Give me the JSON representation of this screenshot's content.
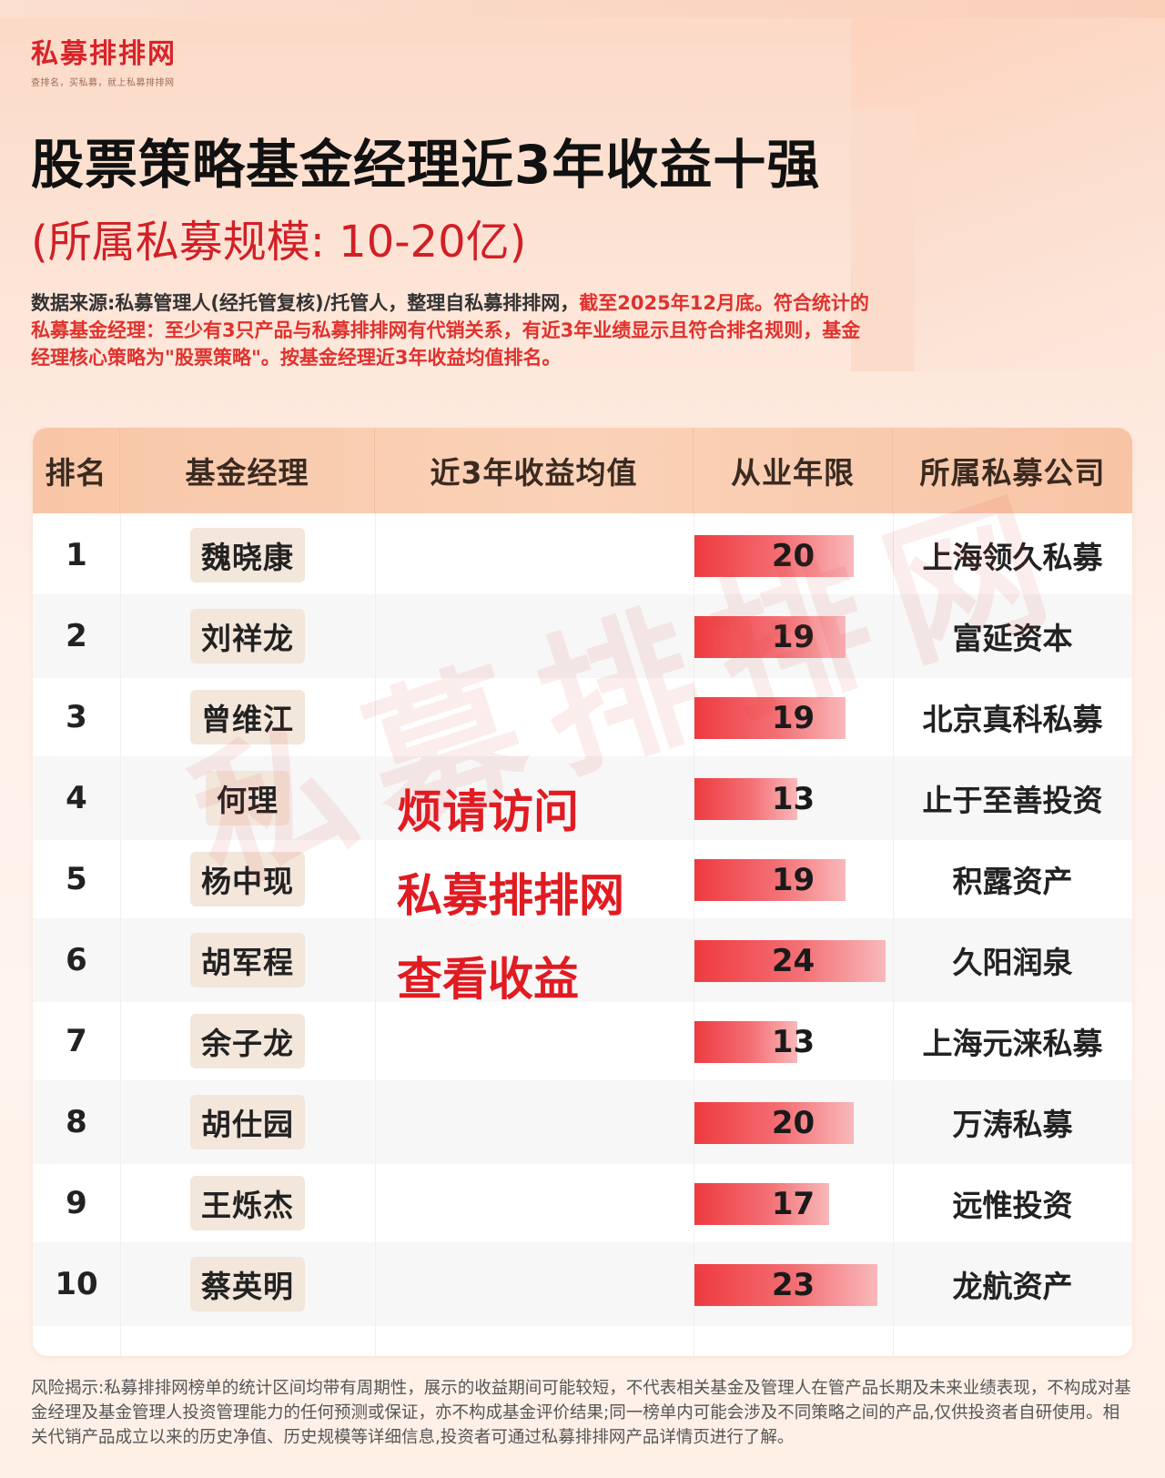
{
  "brand": {
    "name": "私募排排网",
    "tagline": "查排名，买私募，就上私募排排网"
  },
  "title": "股票策略基金经理近3年收益十强",
  "subtitle": "(所属私募规模: 10-20亿)",
  "description": {
    "part1": "数据来源:私募管理人(经托管复核)/托管人，整理自私募排排网，",
    "part2": "截至2025年12月底。符合统计的私募基金经理：至少有3只产品与私募排排网有代销关系，有近3年业绩显示且符合排名规则，基金经理核心策略为\"股票策略\"。按基金经理近3年收益均值排名。"
  },
  "table": {
    "headers": [
      "排名",
      "基金经理",
      "近3年收益均值",
      "从业年限",
      "所属私募公司"
    ],
    "rows": [
      {
        "rank": "1",
        "manager": "魏晓康",
        "years": 20,
        "company": "上海领久私募"
      },
      {
        "rank": "2",
        "manager": "刘祥龙",
        "years": 19,
        "company": "富延资本"
      },
      {
        "rank": "3",
        "manager": "曾维江",
        "years": 19,
        "company": "北京真科私募"
      },
      {
        "rank": "4",
        "manager": "何理",
        "years": 13,
        "company": "止于至善投资"
      },
      {
        "rank": "5",
        "manager": "杨中现",
        "years": 19,
        "company": "积露资产"
      },
      {
        "rank": "6",
        "manager": "胡军程",
        "years": 24,
        "company": "久阳润泉"
      },
      {
        "rank": "7",
        "manager": "余子龙",
        "years": 13,
        "company": "上海元涞私募"
      },
      {
        "rank": "8",
        "manager": "胡仕园",
        "years": 20,
        "company": "万涛私募"
      },
      {
        "rank": "9",
        "manager": "王烁杰",
        "years": 17,
        "company": "远惟投资"
      },
      {
        "rank": "10",
        "manager": "蔡英明",
        "years": 23,
        "company": "龙航资产"
      }
    ],
    "years_max": 24,
    "promo_lines": [
      "烦请访问",
      "私募排排网",
      "查看收益"
    ]
  },
  "watermark": "私募排排网",
  "footer": "风险揭示:私募排排网榜单的统计区间均带有周期性，展示的收益期间可能较短，不代表相关基金及管理人在管产品长期及未来业绩表现，不构成对基金经理及基金管理人投资管理能力的任何预测或保证，亦不构成基金评价结果;同一榜单内可能会涉及不同策略之间的产品,仅供投资者自研使用。相关代销产品成立以来的历史净值、历史规模等详细信息,投资者可通过私募排排网产品详情页进行了解。",
  "colors": {
    "brand_red": "#d8242a",
    "header_bg": "#f8c6a6",
    "bar_start": "#ee3a3f",
    "bar_end": "#f9b8ba"
  }
}
